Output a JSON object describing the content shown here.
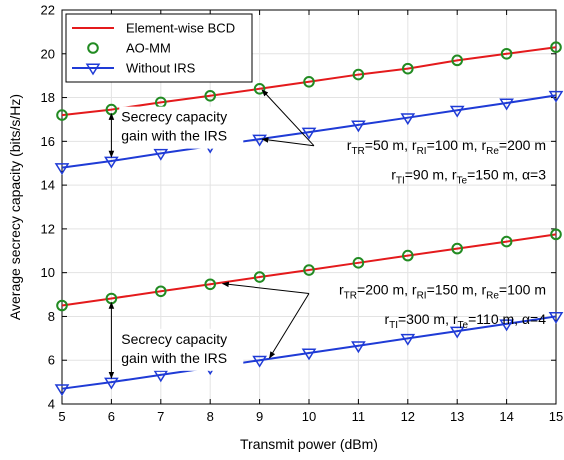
{
  "chart_data": {
    "type": "line",
    "xlabel": "Transmit power (dBm)",
    "ylabel": "Average secrecy capacity (bits/s/Hz)",
    "xlim": [
      5,
      15
    ],
    "ylim": [
      4,
      22
    ],
    "x_ticks": [
      5,
      6,
      7,
      8,
      9,
      10,
      11,
      12,
      13,
      14,
      15
    ],
    "y_ticks": [
      4,
      6,
      8,
      10,
      12,
      14,
      16,
      18,
      20,
      22
    ],
    "grid": true,
    "legend_placement": "top-left",
    "x": [
      5,
      6,
      7,
      8,
      9,
      10,
      11,
      12,
      13,
      14,
      15
    ],
    "series": [
      {
        "name": "Element-wise BCD",
        "color": "#e41a1c",
        "marker": "none",
        "group": 1,
        "values": [
          17.2,
          17.45,
          17.78,
          18.08,
          18.4,
          18.72,
          19.05,
          19.32,
          19.7,
          20.0,
          20.3
        ]
      },
      {
        "name": "AO-MM",
        "color": "#228b22",
        "marker": "circle",
        "group": 1,
        "values": [
          17.2,
          17.45,
          17.78,
          18.08,
          18.4,
          18.72,
          19.05,
          19.32,
          19.7,
          20.0,
          20.3
        ]
      },
      {
        "name": "Without IRS",
        "color": "#1f3bd6",
        "marker": "triangle-down",
        "group": 1,
        "values": [
          14.8,
          15.1,
          15.45,
          15.78,
          16.1,
          16.42,
          16.75,
          17.08,
          17.42,
          17.75,
          18.1
        ]
      },
      {
        "name": "Element-wise BCD",
        "color": "#e41a1c",
        "marker": "none",
        "group": 2,
        "values": [
          8.5,
          8.82,
          9.15,
          9.47,
          9.8,
          10.12,
          10.45,
          10.78,
          11.1,
          11.42,
          11.75
        ]
      },
      {
        "name": "AO-MM",
        "color": "#228b22",
        "marker": "circle",
        "group": 2,
        "values": [
          8.5,
          8.82,
          9.15,
          9.47,
          9.8,
          10.12,
          10.45,
          10.78,
          11.1,
          11.42,
          11.75
        ]
      },
      {
        "name": "Without IRS",
        "color": "#1f3bd6",
        "marker": "triangle-down",
        "group": 2,
        "values": [
          4.7,
          5.0,
          5.33,
          5.66,
          6.0,
          6.33,
          6.66,
          7.0,
          7.33,
          7.66,
          8.0
        ]
      }
    ],
    "annotations": [
      {
        "lines": [
          "Secrecy capacity",
          "gain with the IRS"
        ],
        "x": 6.2,
        "y": 16.9,
        "align": "start"
      },
      {
        "lines": [
          "Secrecy capacity",
          "gain with the IRS"
        ],
        "x": 6.2,
        "y": 6.75,
        "align": "start"
      }
    ],
    "param_labels": [
      {
        "x": 15,
        "y": 15.6,
        "parts": [
          [
            "r",
            "TR"
          ],
          [
            "=50 m, ",
            ""
          ],
          [
            "r",
            "RI"
          ],
          [
            "=100 m, ",
            ""
          ],
          [
            "r",
            "Re"
          ],
          [
            "=200 m",
            ""
          ]
        ]
      },
      {
        "x": 15,
        "y": 14.25,
        "parts": [
          [
            "r",
            "TI"
          ],
          [
            "=90 m, ",
            ""
          ],
          [
            "r",
            "Te"
          ],
          [
            "=150 m, α=3",
            ""
          ]
        ]
      },
      {
        "x": 15,
        "y": 9.0,
        "parts": [
          [
            "r",
            "TR"
          ],
          [
            "=200 m, ",
            ""
          ],
          [
            "r",
            "RI"
          ],
          [
            "=150 m, ",
            ""
          ],
          [
            "r",
            "Re"
          ],
          [
            "=100 m",
            ""
          ]
        ]
      },
      {
        "x": 15,
        "y": 7.65,
        "parts": [
          [
            "r",
            "TI"
          ],
          [
            "=300 m, ",
            ""
          ],
          [
            "r",
            "Te"
          ],
          [
            "=110 m, α=4",
            ""
          ]
        ]
      }
    ],
    "gain_arrows": [
      {
        "x": 6,
        "y_top": 17.45,
        "y_bottom": 15.1
      },
      {
        "x": 6,
        "y_top": 8.82,
        "y_bottom": 5.0
      }
    ],
    "pointer_arrows": [
      {
        "from": [
          10.1,
          15.8
        ],
        "to": [
          9.05,
          18.35
        ]
      },
      {
        "from": [
          10.1,
          15.8
        ],
        "to": [
          9.05,
          16.1
        ]
      },
      {
        "from": [
          10.0,
          9.05
        ],
        "to": [
          8.25,
          9.5
        ]
      },
      {
        "from": [
          10.0,
          9.05
        ],
        "to": [
          9.2,
          6.1
        ]
      }
    ]
  }
}
